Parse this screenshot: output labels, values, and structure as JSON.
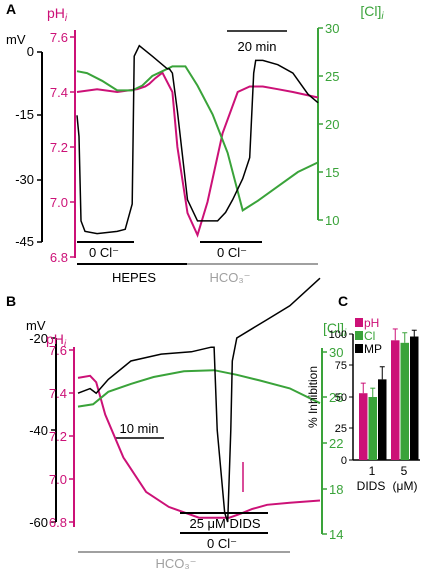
{
  "colors": {
    "ph": "#cc1177",
    "cl": "#3aa33a",
    "mv": "#000000",
    "hco3": "#a0a0a0"
  },
  "chart_data": [
    {
      "panel": "A",
      "type": "line",
      "ph_label": "pH",
      "ph_sub": "i",
      "cl_label": "[Cl]",
      "cl_sub": "i",
      "mv_label": "mV",
      "ph_ticks": [
        "7.6",
        "7.4",
        "7.2",
        "7.0",
        "6.8"
      ],
      "mv_ticks": [
        "0",
        "-15",
        "-30",
        "-45"
      ],
      "cl_ticks": [
        "30",
        "25",
        "20",
        "15",
        "10"
      ],
      "scalebar": "20 min",
      "bars": [
        "0 Cl⁻",
        "0 Cl⁻",
        "HEPES",
        "HCO₃⁻"
      ],
      "series": [
        {
          "name": "pH",
          "axis": "pH",
          "x": [
            0,
            20,
            40,
            60,
            68,
            72,
            78,
            85,
            95,
            100,
            110,
            120,
            130,
            145,
            160,
            172,
            185,
            200,
            215,
            240
          ],
          "y": [
            7.4,
            7.41,
            7.4,
            7.41,
            7.42,
            7.43,
            7.45,
            7.47,
            7.4,
            7.2,
            6.96,
            6.88,
            7.0,
            7.25,
            7.4,
            7.42,
            7.42,
            7.41,
            7.4,
            7.38
          ]
        },
        {
          "name": "Cl",
          "axis": "Cl",
          "x": [
            0,
            10,
            25,
            40,
            55,
            65,
            75,
            85,
            95,
            108,
            120,
            135,
            150,
            160,
            165,
            180,
            200,
            220,
            240
          ],
          "y": [
            25.5,
            25.3,
            24.5,
            23.5,
            23.5,
            24,
            25,
            25.5,
            26,
            26,
            24,
            21,
            17,
            13,
            11,
            12,
            13.5,
            15,
            16
          ]
        },
        {
          "name": "mV",
          "axis": "mV",
          "x": [
            0,
            2,
            4,
            8,
            20,
            40,
            48,
            55,
            57,
            62,
            75,
            90,
            92,
            95,
            100,
            110,
            120,
            140,
            148,
            155,
            165,
            172,
            176,
            178,
            185,
            200,
            215,
            230,
            240
          ],
          "y": [
            -15,
            -20,
            -40,
            -42.5,
            -43,
            -42.5,
            -42,
            -36,
            -1,
            1.5,
            -1,
            -4,
            -4,
            -5,
            -14,
            -35,
            -40,
            -40,
            -38,
            -35,
            -30,
            -25,
            -5,
            -2,
            -2,
            -3,
            -5,
            -10,
            -12
          ]
        }
      ]
    },
    {
      "panel": "B",
      "type": "line",
      "ph_label": "pH",
      "ph_sub": "i",
      "cl_label": "[Cl]",
      "cl_sub": "i",
      "mv_label": "mV",
      "ph_ticks": [
        "7.6",
        "7.4",
        "7.2",
        "7.0",
        "6.8"
      ],
      "mv_ticks": [
        "-20",
        "-40",
        "-60"
      ],
      "cl_ticks": [
        "30",
        "26",
        "22",
        "18",
        "14"
      ],
      "scalebar": "10 min",
      "bars": [
        "25 μM DIDS",
        "0 Cl⁻",
        "HCO₃⁻"
      ],
      "series": [
        {
          "name": "pH",
          "axis": "pH",
          "x": [
            0,
            8,
            12,
            18,
            30,
            45,
            60,
            80,
            100,
            108,
            115,
            125,
            140,
            160
          ],
          "y": [
            7.47,
            7.48,
            7.45,
            7.3,
            7.1,
            6.94,
            6.87,
            6.82,
            6.82,
            6.84,
            6.86,
            6.88,
            6.89,
            6.9
          ]
        },
        {
          "name": "Cl",
          "axis": "Cl",
          "x": [
            0,
            10,
            20,
            35,
            50,
            70,
            90,
            105,
            120,
            140,
            160
          ],
          "y": [
            25.2,
            25.4,
            26.5,
            27.2,
            27.8,
            28.3,
            28.4,
            28,
            27.5,
            26.8,
            25.5
          ]
        },
        {
          "name": "mV",
          "axis": "mV",
          "x": [
            0,
            8,
            12,
            20,
            35,
            55,
            75,
            88,
            90,
            92,
            97,
            99,
            101,
            102,
            105,
            115,
            125,
            140,
            160
          ],
          "y": [
            -32,
            -31,
            -32,
            -29,
            -25,
            -23.5,
            -23,
            -22,
            -22,
            -40,
            -58,
            -60,
            -40,
            -25,
            -20,
            -18,
            -16,
            -13,
            -7
          ]
        }
      ]
    },
    {
      "panel": "C",
      "type": "bar",
      "ylabel": "% Inhibition",
      "xlabel": "DIDS",
      "xunit": "(μM)",
      "ylim": [
        0,
        100
      ],
      "yticks": [
        "0",
        "25",
        "50",
        "75",
        "100"
      ],
      "categories": [
        "1",
        "5"
      ],
      "series": [
        {
          "name": "pH",
          "values": [
            53,
            95
          ],
          "err": [
            8,
            9
          ]
        },
        {
          "name": "Cl",
          "values": [
            50,
            93
          ],
          "err": [
            7,
            8
          ]
        },
        {
          "name": "MP",
          "values": [
            64,
            98
          ],
          "err": [
            10,
            5
          ]
        }
      ]
    }
  ]
}
